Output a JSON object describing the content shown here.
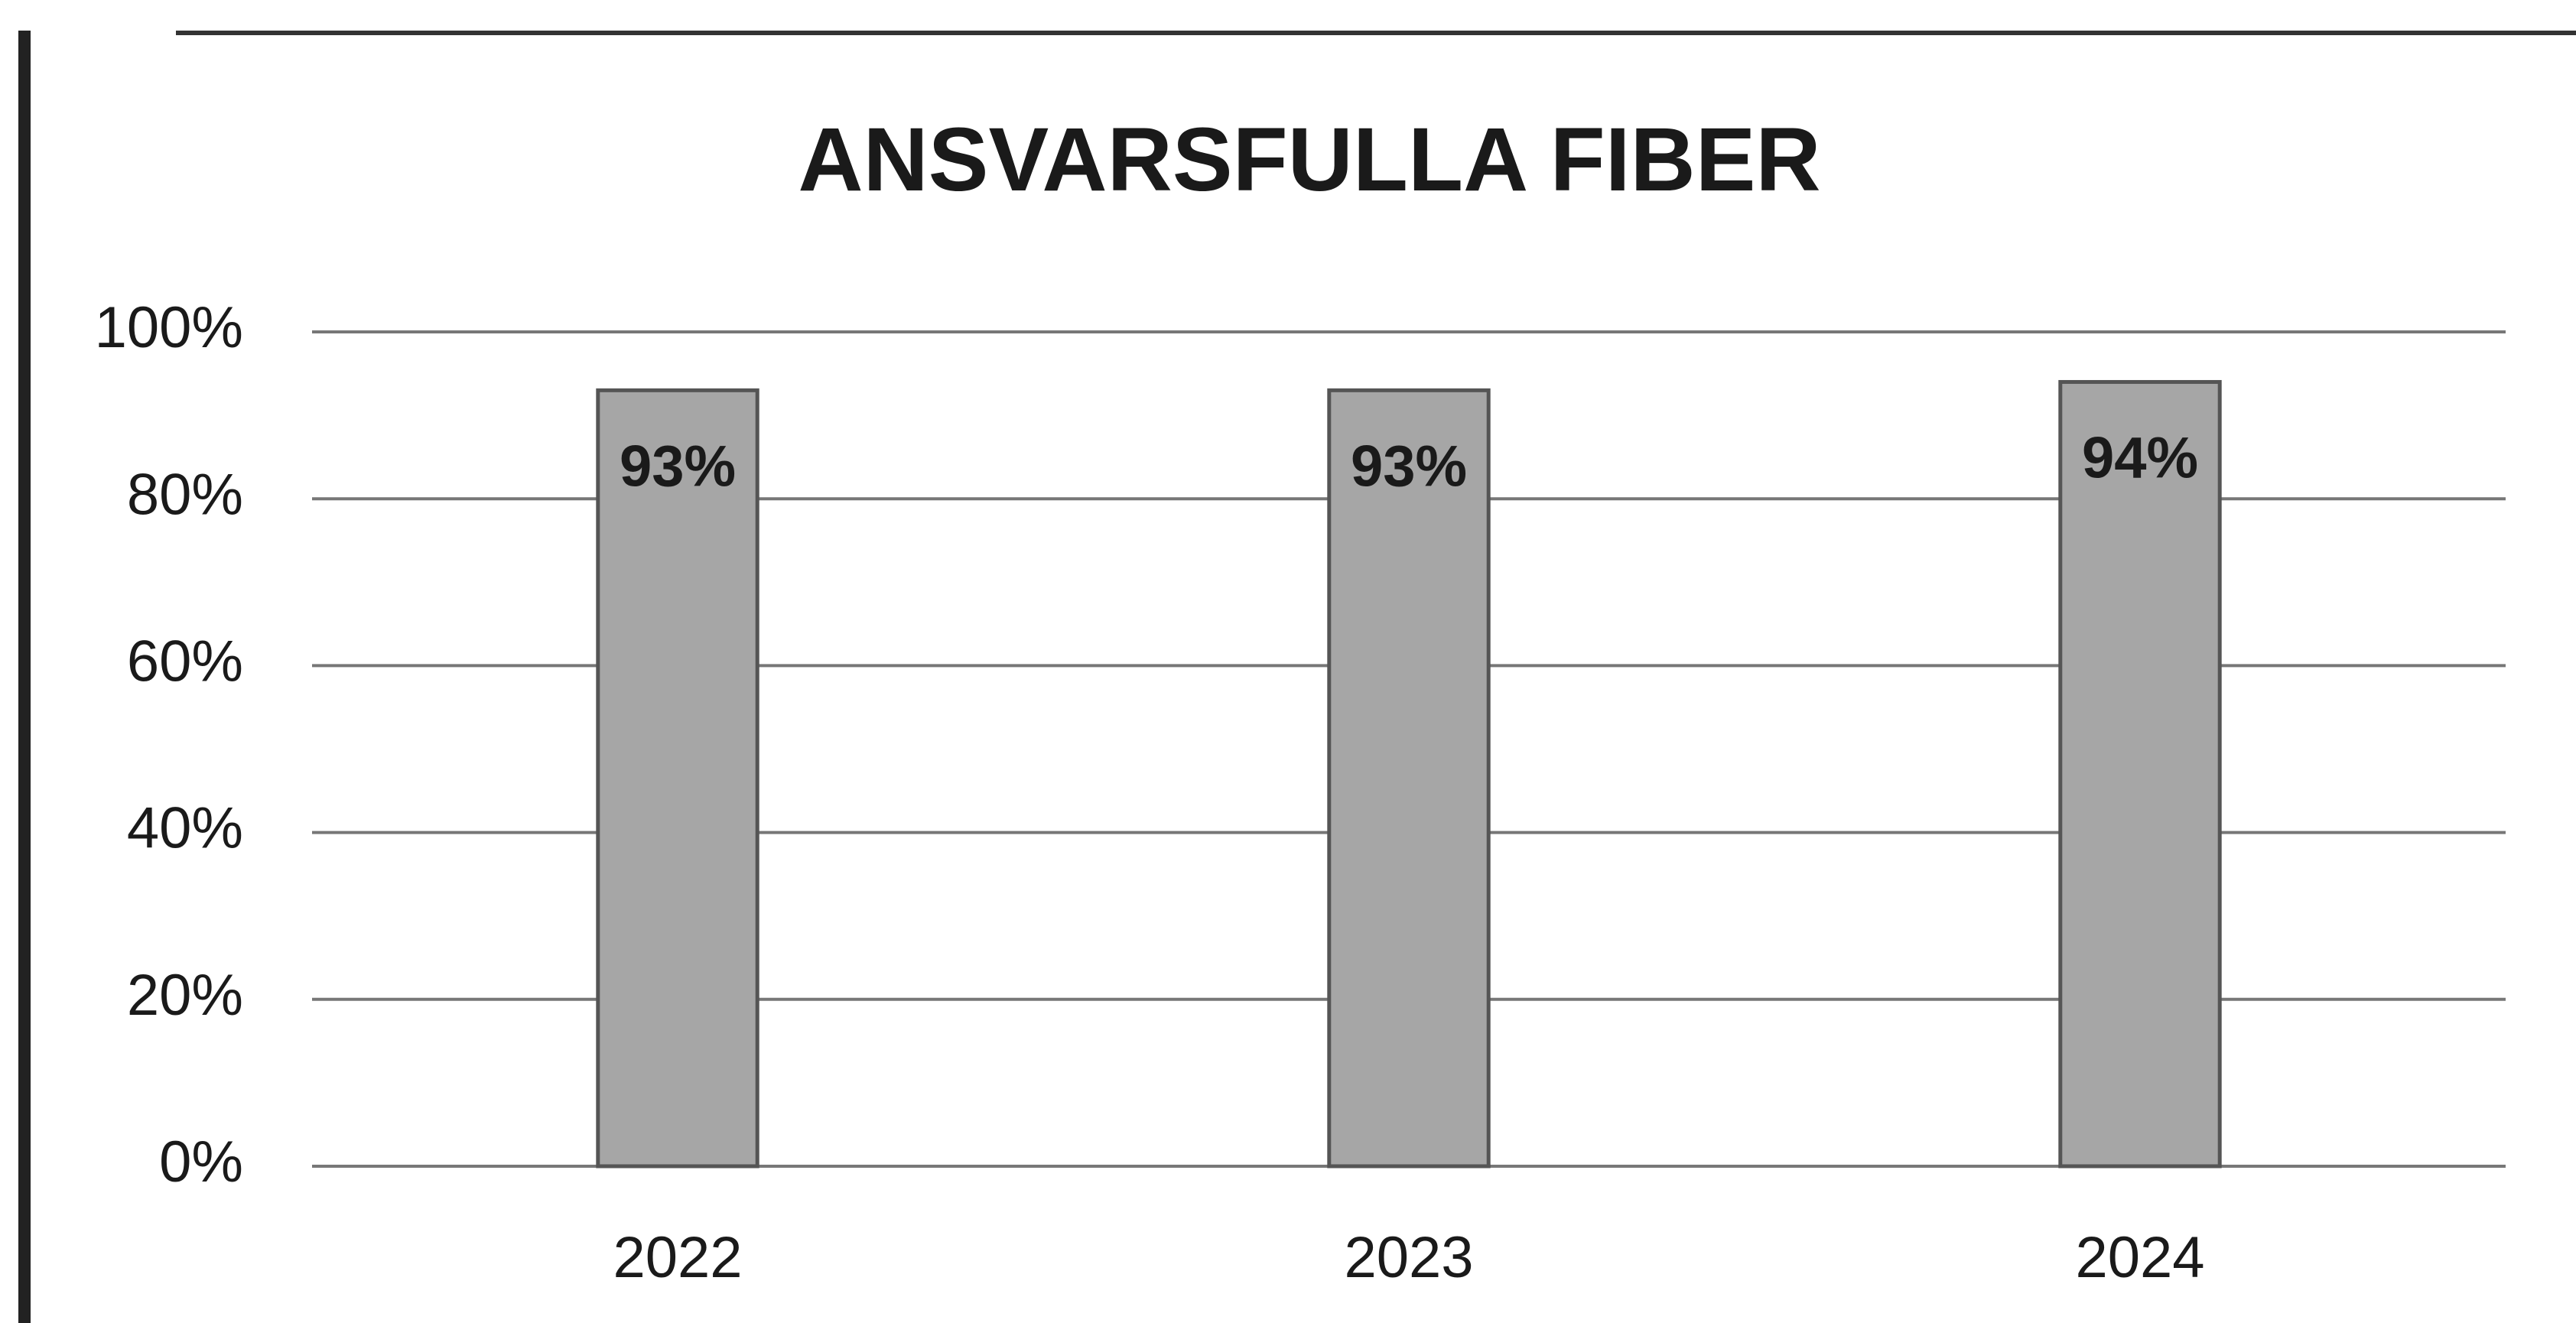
{
  "chart_data": {
    "type": "bar",
    "title": "ANSVARSFULLA FIBER",
    "categories": [
      "2022",
      "2023",
      "2024"
    ],
    "values": [
      93,
      93,
      94
    ],
    "value_labels": [
      "93%",
      "93%",
      "94%"
    ],
    "color": "#a6a6a6",
    "ylim": [
      0,
      100
    ],
    "yticks": [
      {
        "value": 0,
        "label": "0%"
      },
      {
        "value": 20,
        "label": "20%"
      },
      {
        "value": 40,
        "label": "40%"
      },
      {
        "value": 60,
        "label": "60%"
      },
      {
        "value": 80,
        "label": "80%"
      },
      {
        "value": 100,
        "label": "100%"
      }
    ],
    "grid": true
  }
}
